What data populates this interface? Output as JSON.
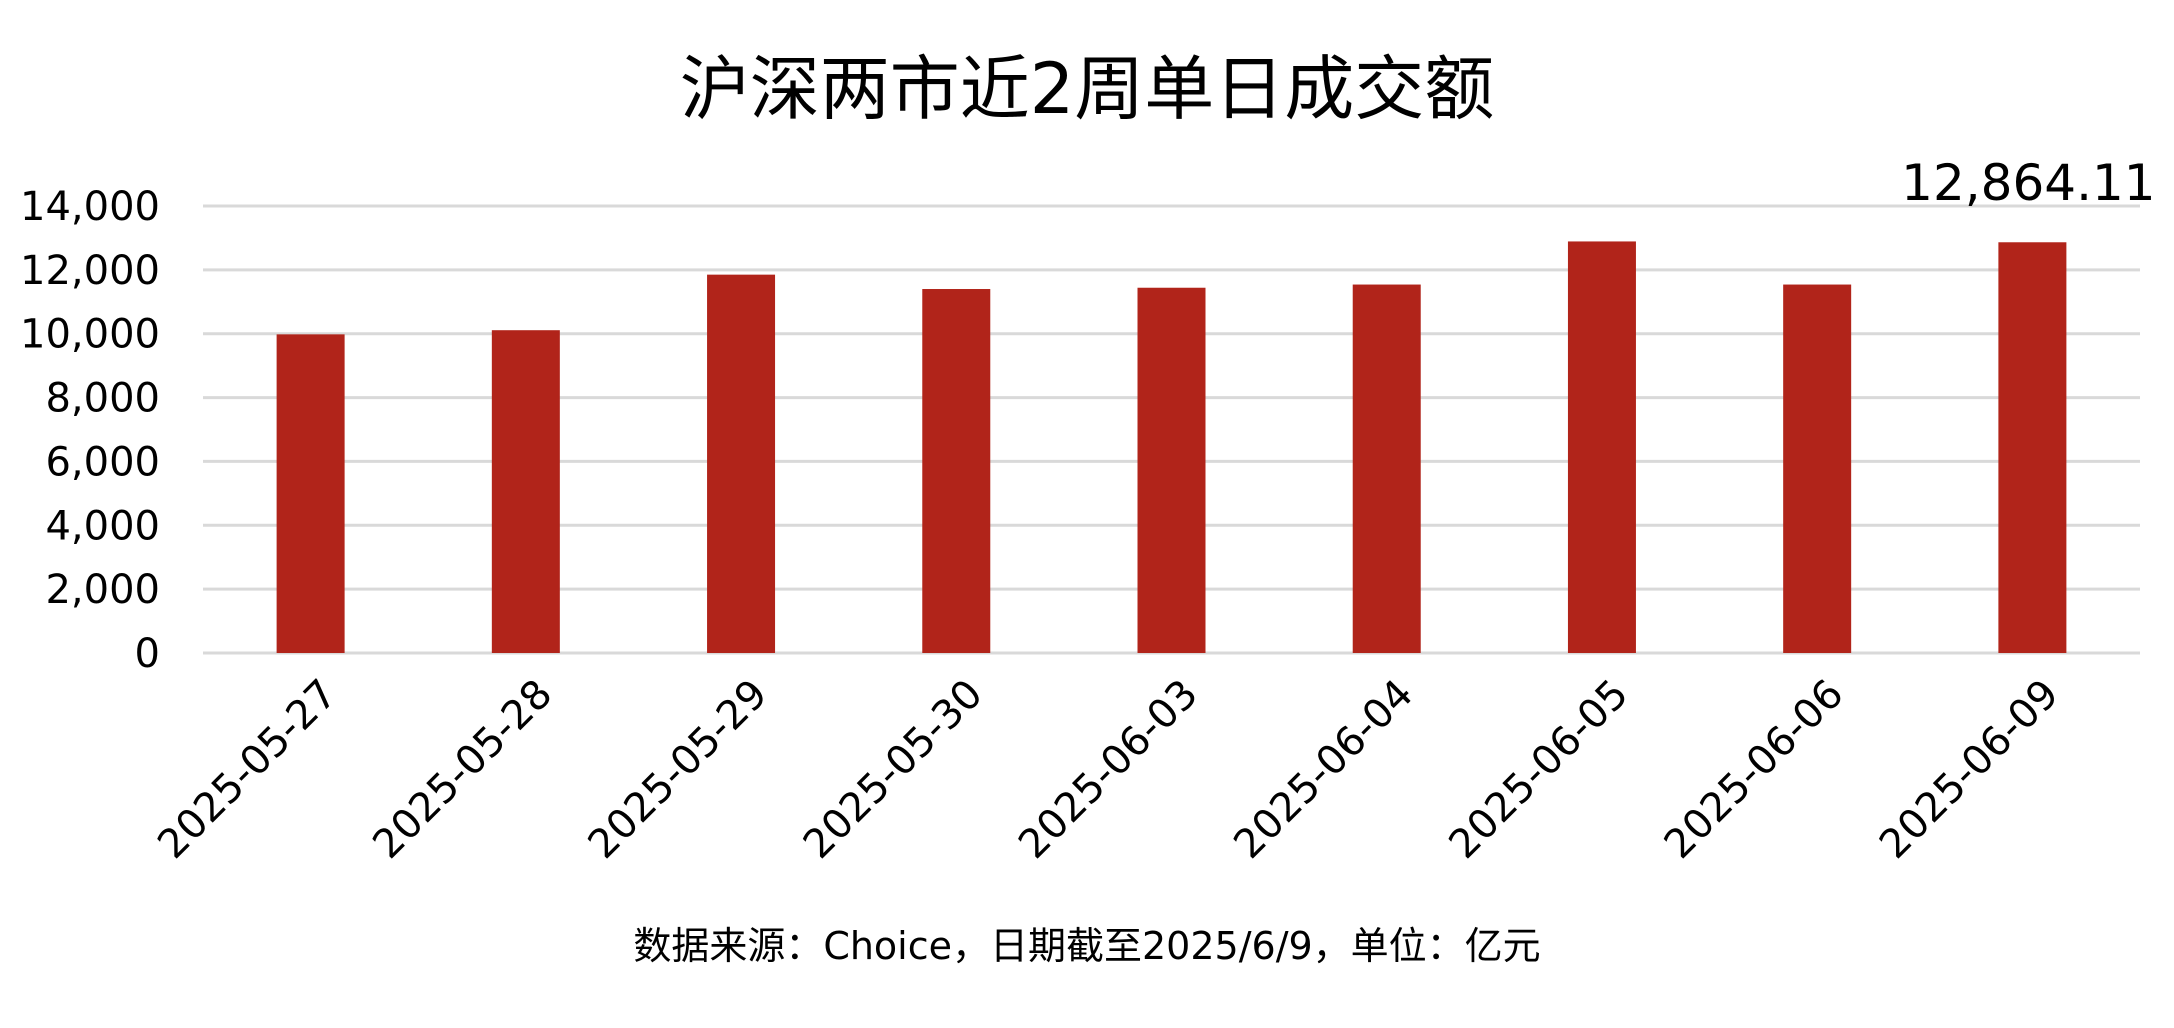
{
  "chart_data": {
    "type": "bar",
    "title": "沪深两市近2周单日成交额",
    "categories": [
      "2025-05-27",
      "2025-05-28",
      "2025-05-29",
      "2025-05-30",
      "2025-06-03",
      "2025-06-04",
      "2025-06-05",
      "2025-06-06",
      "2025-06-09"
    ],
    "values": [
      9980,
      10110,
      11850,
      11400,
      11440,
      11540,
      12890,
      11540,
      12864.11
    ],
    "ylim": [
      0,
      14000
    ],
    "yticks": [
      "0",
      "2,000",
      "4,000",
      "6,000",
      "8,000",
      "10,000",
      "12,000",
      "14,000"
    ],
    "ytick_values": [
      0,
      2000,
      4000,
      6000,
      8000,
      10000,
      12000,
      14000
    ],
    "data_label": {
      "category": "2025-06-09",
      "text": "12,864.11"
    },
    "grid": true,
    "bar_color": "#b1241a",
    "grid_color": "#d9d9d9",
    "footnote": "数据来源：Choice，日期截至2025/6/9，单位：亿元"
  }
}
